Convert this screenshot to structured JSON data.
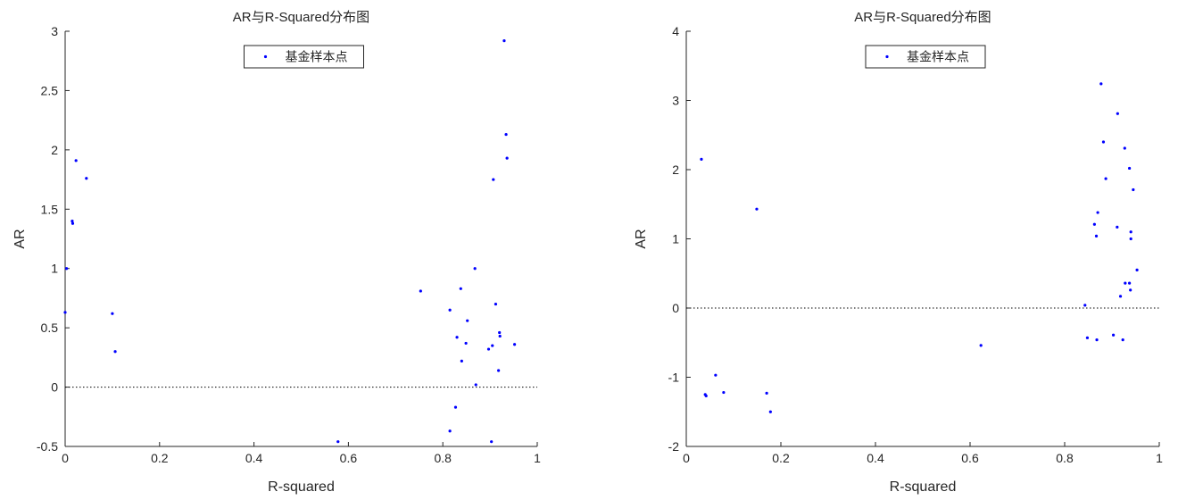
{
  "chart_data": [
    {
      "type": "scatter",
      "title": "AR与R-Squared分布图",
      "xlabel": "R-squared",
      "ylabel": "AR",
      "xlim": [
        0,
        1
      ],
      "ylim": [
        -0.5,
        3
      ],
      "xticks": [
        "0",
        "0.2",
        "0.4",
        "0.6",
        "0.8",
        "1"
      ],
      "yticks": [
        "-0.5",
        "0",
        "0.5",
        "1",
        "1.5",
        "2",
        "2.5",
        "3"
      ],
      "reference_line_y": 0,
      "legend": {
        "label": "基金样本点",
        "placement": "top-center"
      },
      "marker_color": "#0000ff",
      "series": [
        {
          "name": "基金样本点",
          "points": [
            [
              0.0,
              0.63
            ],
            [
              0.003,
              1.0
            ],
            [
              0.015,
              1.4
            ],
            [
              0.016,
              1.38
            ],
            [
              0.023,
              1.91
            ],
            [
              0.045,
              1.76
            ],
            [
              0.1,
              0.62
            ],
            [
              0.106,
              0.3
            ],
            [
              0.578,
              -0.46
            ],
            [
              0.753,
              0.81
            ],
            [
              0.815,
              0.65
            ],
            [
              0.815,
              -0.37
            ],
            [
              0.827,
              -0.17
            ],
            [
              0.83,
              0.42
            ],
            [
              0.838,
              0.83
            ],
            [
              0.84,
              0.22
            ],
            [
              0.849,
              0.37
            ],
            [
              0.852,
              0.56
            ],
            [
              0.868,
              1.0
            ],
            [
              0.87,
              0.02
            ],
            [
              0.897,
              0.32
            ],
            [
              0.903,
              -0.46
            ],
            [
              0.905,
              0.35
            ],
            [
              0.907,
              1.75
            ],
            [
              0.912,
              0.7
            ],
            [
              0.918,
              0.14
            ],
            [
              0.92,
              0.46
            ],
            [
              0.921,
              0.43
            ],
            [
              0.93,
              2.92
            ],
            [
              0.934,
              2.13
            ],
            [
              0.936,
              1.93
            ],
            [
              0.952,
              0.36
            ]
          ]
        }
      ]
    },
    {
      "type": "scatter",
      "title": "AR与R-Squared分布图",
      "xlabel": "R-squared",
      "ylabel": "AR",
      "xlim": [
        0,
        1
      ],
      "ylim": [
        -2,
        4
      ],
      "xticks": [
        "0",
        "0.2",
        "0.4",
        "0.6",
        "0.8",
        "1"
      ],
      "yticks": [
        "-2",
        "-1",
        "0",
        "1",
        "2",
        "3",
        "4"
      ],
      "reference_line_y": 0,
      "legend": {
        "label": "基金样本点",
        "placement": "top-center"
      },
      "marker_color": "#0000ff",
      "series": [
        {
          "name": "基金样本点",
          "points": [
            [
              0.032,
              2.15
            ],
            [
              0.04,
              -1.25
            ],
            [
              0.042,
              -1.27
            ],
            [
              0.062,
              -0.97
            ],
            [
              0.079,
              -1.22
            ],
            [
              0.149,
              1.43
            ],
            [
              0.17,
              -1.23
            ],
            [
              0.178,
              -1.5
            ],
            [
              0.623,
              -0.54
            ],
            [
              0.843,
              0.04
            ],
            [
              0.848,
              -0.43
            ],
            [
              0.863,
              1.21
            ],
            [
              0.867,
              1.04
            ],
            [
              0.868,
              -0.46
            ],
            [
              0.87,
              1.38
            ],
            [
              0.877,
              3.24
            ],
            [
              0.882,
              2.4
            ],
            [
              0.887,
              1.87
            ],
            [
              0.903,
              -0.39
            ],
            [
              0.911,
              1.17
            ],
            [
              0.912,
              2.81
            ],
            [
              0.918,
              0.17
            ],
            [
              0.923,
              -0.46
            ],
            [
              0.927,
              2.31
            ],
            [
              0.928,
              0.36
            ],
            [
              0.937,
              2.02
            ],
            [
              0.937,
              0.36
            ],
            [
              0.939,
              0.26
            ],
            [
              0.94,
              1.1
            ],
            [
              0.94,
              1.0
            ],
            [
              0.945,
              1.71
            ],
            [
              0.953,
              0.55
            ]
          ]
        }
      ]
    }
  ]
}
